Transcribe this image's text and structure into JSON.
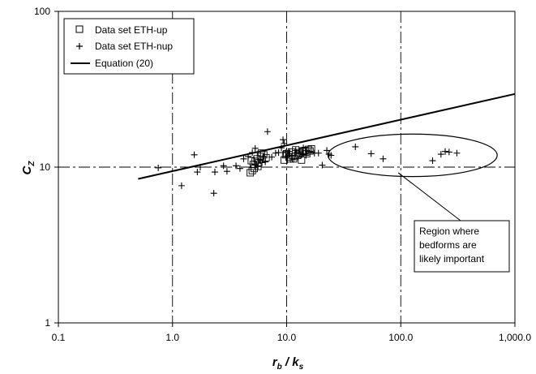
{
  "chart_data": {
    "type": "scatter",
    "xscale": "log",
    "yscale": "log",
    "xlim": [
      0.1,
      1000
    ],
    "ylim": [
      1,
      100
    ],
    "xticks": [
      {
        "value": 0.1,
        "label": "0.1"
      },
      {
        "value": 1,
        "label": "1.0"
      },
      {
        "value": 10,
        "label": "10.0"
      },
      {
        "value": 100,
        "label": "100.0"
      },
      {
        "value": 1000,
        "label": "1,000.0"
      }
    ],
    "yticks": [
      {
        "value": 1,
        "label": "1"
      },
      {
        "value": 10,
        "label": "10"
      },
      {
        "value": 100,
        "label": "100"
      }
    ],
    "xlabel": {
      "main": "r",
      "sub1": "b",
      "mid": " / k",
      "sub2": "s"
    },
    "ylabel": {
      "main": "C",
      "sub": "Z"
    },
    "grid": "dash-dot lines at decades",
    "legend_position": "top-left",
    "legend": [
      {
        "marker": "square",
        "label": "Data set ETH-up"
      },
      {
        "marker": "plus",
        "label": "Data set ETH-nup"
      },
      {
        "marker": "line",
        "label": "Equation (20)"
      }
    ],
    "series": [
      {
        "name": "Data set ETH-up",
        "marker": "square",
        "points": [
          [
            5.0,
            9.5
          ],
          [
            5.1,
            10.4
          ],
          [
            5.3,
            10.9
          ],
          [
            5.5,
            11.3
          ],
          [
            5.7,
            10.7
          ],
          [
            5.9,
            11.7
          ],
          [
            6.1,
            11.2
          ],
          [
            6.3,
            12.0
          ],
          [
            6.6,
            11.5
          ],
          [
            4.8,
            9.2
          ],
          [
            5.2,
            9.8
          ],
          [
            5.6,
            10.1
          ],
          [
            6.0,
            12.3
          ],
          [
            4.9,
            11.0
          ],
          [
            9.5,
            11.1
          ],
          [
            10.0,
            12.2
          ],
          [
            10.5,
            11.6
          ],
          [
            11.0,
            12.5
          ],
          [
            11.5,
            11.3
          ],
          [
            12.0,
            12.9
          ],
          [
            12.5,
            11.9
          ],
          [
            13.0,
            12.4
          ],
          [
            13.5,
            11.1
          ],
          [
            14.0,
            12.6
          ],
          [
            14.5,
            12.8
          ],
          [
            15.0,
            12.2
          ],
          [
            15.5,
            13.0
          ],
          [
            16.0,
            12.7
          ],
          [
            16.5,
            13.1
          ],
          [
            11.8,
            11.7
          ],
          [
            12.8,
            12.1
          ],
          [
            13.8,
            12.7
          ],
          [
            10.8,
            11.3
          ],
          [
            9.8,
            12.0
          ]
        ]
      },
      {
        "name": "Data set ETH-nup",
        "marker": "plus",
        "points": [
          [
            0.75,
            9.9
          ],
          [
            1.2,
            7.6
          ],
          [
            1.55,
            12.0
          ],
          [
            1.65,
            9.3
          ],
          [
            1.75,
            10.0
          ],
          [
            2.3,
            6.8
          ],
          [
            2.35,
            9.3
          ],
          [
            2.8,
            10.2
          ],
          [
            3.0,
            9.4
          ],
          [
            3.6,
            10.2
          ],
          [
            3.9,
            9.8
          ],
          [
            4.2,
            11.3
          ],
          [
            4.6,
            11.7
          ],
          [
            5.0,
            12.4
          ],
          [
            5.3,
            13.2
          ],
          [
            5.6,
            10.1
          ],
          [
            5.9,
            11.0
          ],
          [
            6.3,
            11.7
          ],
          [
            6.5,
            10.8
          ],
          [
            6.8,
            16.9
          ],
          [
            7.4,
            11.6
          ],
          [
            8.0,
            12.3
          ],
          [
            8.5,
            12.4
          ],
          [
            9.0,
            13.3
          ],
          [
            9.3,
            15.0
          ],
          [
            9.5,
            14.2
          ],
          [
            9.8,
            12.4
          ],
          [
            10.2,
            11.8
          ],
          [
            10.6,
            12.6
          ],
          [
            11.2,
            11.3
          ],
          [
            12.0,
            12.8
          ],
          [
            13.0,
            12.2
          ],
          [
            14.0,
            13.3
          ],
          [
            14.8,
            11.9
          ],
          [
            16.0,
            12.6
          ],
          [
            17.5,
            12.3
          ],
          [
            19.0,
            12.3
          ],
          [
            20.5,
            10.3
          ],
          [
            22.5,
            12.8
          ],
          [
            23.5,
            12.1
          ],
          [
            24.5,
            11.9
          ],
          [
            40.0,
            13.5
          ],
          [
            55.0,
            12.2
          ],
          [
            70.0,
            11.3
          ],
          [
            190.0,
            11.0
          ],
          [
            225.0,
            12.1
          ],
          [
            245.0,
            12.6
          ],
          [
            265.0,
            12.5
          ],
          [
            310.0,
            12.3
          ]
        ]
      }
    ],
    "lines": [
      {
        "name": "Equation (20)",
        "points": [
          [
            0.5,
            8.4
          ],
          [
            1000,
            29.5
          ]
        ]
      }
    ],
    "annotation": {
      "text_lines": [
        "Region where",
        "bedforms are",
        "likely important"
      ],
      "ellipse": {
        "x_range": [
          23,
          700
        ],
        "y_range": [
          8.7,
          16.3
        ]
      },
      "pointer": [
        95,
        9.2
      ]
    }
  }
}
